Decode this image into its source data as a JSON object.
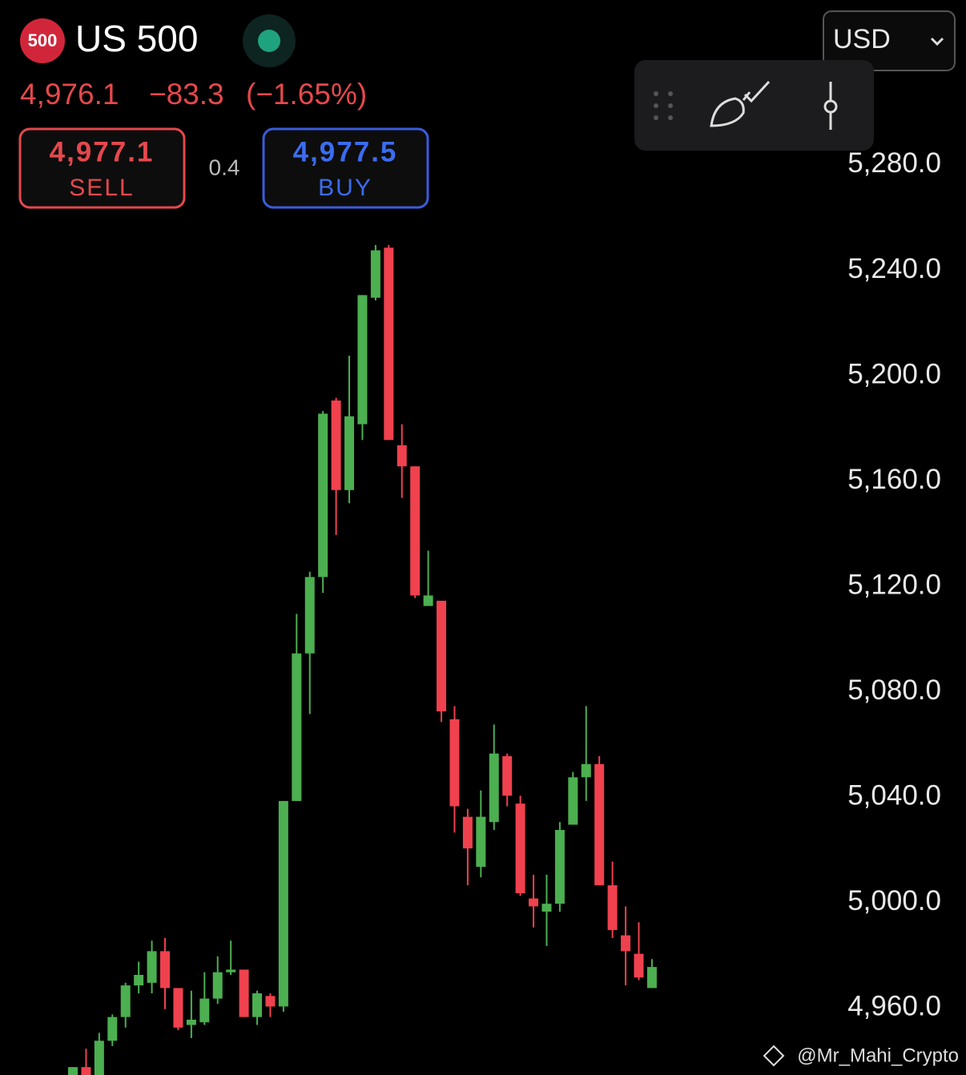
{
  "header": {
    "badge": "500",
    "symbol": "US 500",
    "currency": "USD"
  },
  "quote": {
    "price": "4,976.1",
    "change": "−83.3",
    "change_percent": "(−1.65%)"
  },
  "sell": {
    "price": "4,977.1",
    "label": "SELL"
  },
  "spread": "0.4",
  "buy": {
    "price": "4,977.5",
    "label": "BUY"
  },
  "watermark": "@Mr_Mahi_Crypto",
  "chart_data": {
    "type": "candlestick",
    "up_color": "#4caf50",
    "down_color": "#f0414e",
    "open": [
      4934,
      4937,
      4934,
      4947,
      4956,
      4968,
      4969,
      4981,
      4967,
      4953,
      4954,
      4963,
      4973,
      4974,
      4956,
      4964,
      4960,
      5038,
      5094,
      5123,
      5190,
      5156,
      5181,
      5229,
      5248,
      5173,
      5165,
      5112,
      5114,
      5069,
      5032,
      5013,
      5030,
      5055,
      5037,
      5001,
      4996,
      4999,
      5029,
      5047,
      5052,
      5006,
      4987,
      4980,
      4967
    ],
    "high": [
      4937,
      4944,
      4950,
      4957,
      4969,
      4977,
      4985,
      4986,
      4967,
      4966,
      4973,
      4979,
      4985,
      4974,
      4966,
      4965,
      5038,
      5109,
      5125,
      5186,
      5191,
      5207,
      5230,
      5249,
      5249,
      5181,
      5165,
      5133,
      5114,
      5074,
      5035,
      5042,
      5067,
      5056,
      5040,
      5010,
      5010,
      5030,
      5049,
      5074,
      5055,
      5015,
      4998,
      4992,
      4978
    ],
    "low": [
      4934,
      4934,
      4934,
      4945,
      4952,
      4965,
      4965,
      4959,
      4951,
      4948,
      4953,
      4961,
      4972,
      4956,
      4953,
      4956,
      4958,
      5038,
      5071,
      5117,
      5139,
      5151,
      5175,
      5228,
      5175,
      5153,
      5115,
      5112,
      5068,
      5026,
      5006,
      5009,
      5027,
      5036,
      5002,
      4990,
      4983,
      4996,
      5029,
      5038,
      5006,
      4986,
      4968,
      4970,
      4967
    ],
    "close": [
      4937,
      4934,
      4947,
      4956,
      4968,
      4972,
      4981,
      4967,
      4952,
      4955,
      4963,
      4973,
      4974,
      4956,
      4965,
      4960,
      5038,
      5094,
      5123,
      5185,
      5156,
      5184,
      5230,
      5247,
      5175,
      5165,
      5116,
      5116,
      5072,
      5036,
      5020,
      5032,
      5056,
      5040,
      5003,
      4998,
      4999,
      5027,
      5047,
      5052,
      5006,
      4989,
      4981,
      4971,
      4975
    ],
    "ylim": [
      4934,
      5342
    ],
    "yticks": [
      {
        "value": 4960,
        "label": "4,960.0"
      },
      {
        "value": 5000,
        "label": "5,000.0"
      },
      {
        "value": 5040,
        "label": "5,040.0"
      },
      {
        "value": 5080,
        "label": "5,080.0"
      },
      {
        "value": 5120,
        "label": "5,120.0"
      },
      {
        "value": 5160,
        "label": "5,160.0"
      },
      {
        "value": 5200,
        "label": "5,200.0"
      },
      {
        "value": 5240,
        "label": "5,240.0"
      },
      {
        "value": 5280,
        "label": "5,280.0"
      }
    ]
  }
}
